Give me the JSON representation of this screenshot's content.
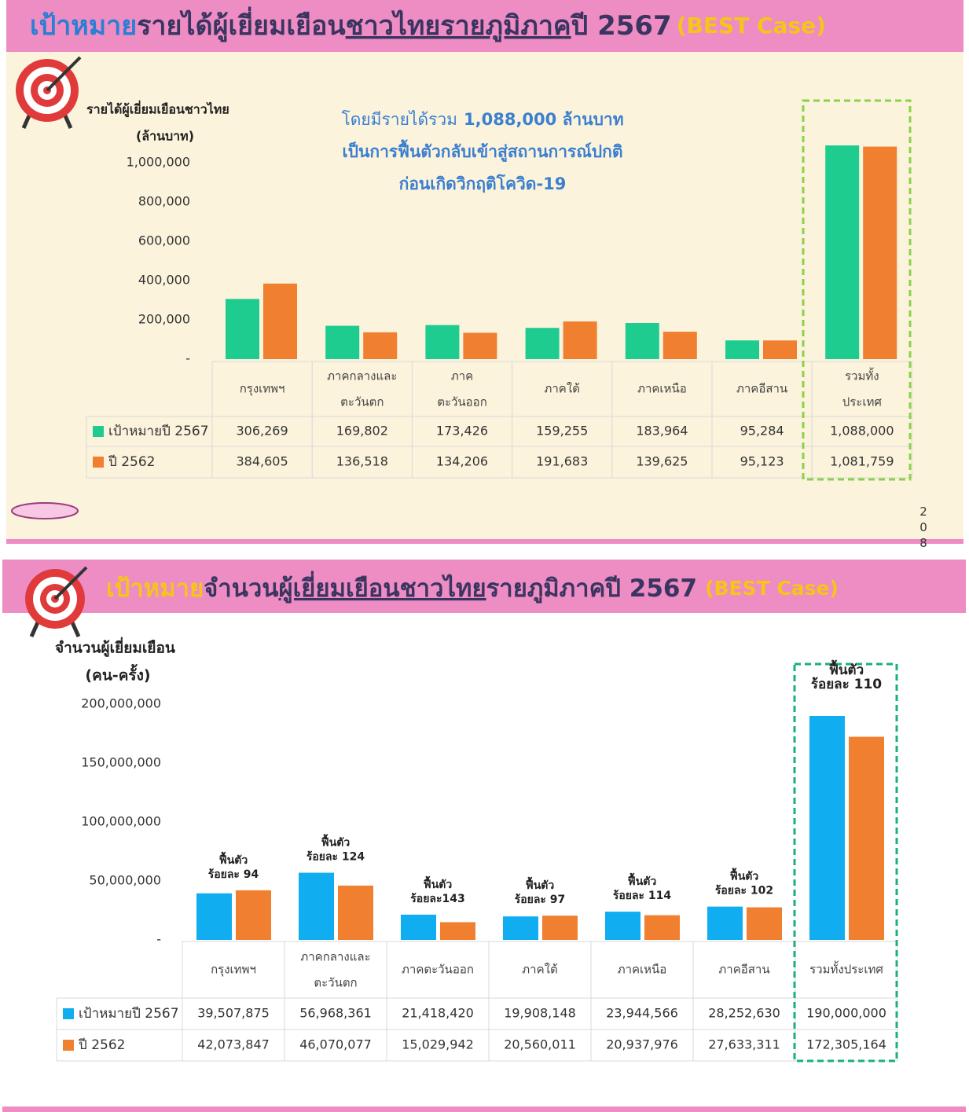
{
  "chart_data": [
    {
      "type": "bar",
      "title_parts": [
        "เป้าหมาย",
        "รายได้ผู้เยี่ยมเยือน",
        "ชาวไทยรายภูมิภาค",
        "ปี 2567"
      ],
      "subtitle": "(BEST Case)",
      "y_label": [
        "รายได้ผู้เยี่ยมเยือนชาวไทย",
        "(ล้านบาท)"
      ],
      "annotation": [
        [
          "โดยมีรายได้รวม",
          "1,088,000 ล้านบาท"
        ],
        [
          "เป็นการฟื้นตัวกลับเข้าสู่สถานการณ์ปกติ"
        ],
        [
          "ก่อนเกิดวิกฤติโควิด-19"
        ]
      ],
      "categories": [
        "กรุงเทพฯ",
        "ภาคกลางและ\nตะวันตก",
        "ภาค\nตะวันออก",
        "ภาคใต้",
        "ภาคเหนือ",
        "ภาคอีสาน",
        "รวมทั้ง\nประเทศ"
      ],
      "series": [
        {
          "name": "เป้าหมายปี 2567",
          "color": "#1fcc8f",
          "values": [
            306269,
            169802,
            173426,
            159255,
            183964,
            95284,
            1088000
          ],
          "value_labels": [
            "306,269",
            "169,802",
            "173,426",
            "159,255",
            "183,964",
            "95,284",
            "1,088,000"
          ]
        },
        {
          "name": "ปี 2562",
          "color": "#f07f2f",
          "values": [
            384605,
            136518,
            134206,
            191683,
            139625,
            95123,
            1081759
          ],
          "value_labels": [
            "384,605",
            "136,518",
            "134,206",
            "191,683",
            "139,625",
            "95,123",
            "1,081,759"
          ]
        }
      ],
      "ylim": [
        0,
        1100000
      ],
      "yticks": [
        {
          "value": 0,
          "label": "-"
        },
        {
          "value": 200000,
          "label": "200,000"
        },
        {
          "value": 400000,
          "label": "400,000"
        },
        {
          "value": 600000,
          "label": "600,000"
        },
        {
          "value": 800000,
          "label": "800,000"
        },
        {
          "value": 1000000,
          "label": "1,000,000"
        }
      ],
      "highlight_color": "#8cd14a",
      "page_number": "208"
    },
    {
      "type": "bar",
      "title_parts": [
        "เป้าหมาย",
        "จำนวน",
        "ผู้เยี่ยมเยือนชาวไทย",
        "รายภูมิภาคปี 2567"
      ],
      "subtitle": "(BEST Case)",
      "y_label": [
        "จำนวนผู้เยี่ยมเยือน",
        "(คน-ครั้ง)"
      ],
      "categories": [
        "กรุงเทพฯ",
        "ภาคกลางและ\nตะวันตก",
        "ภาคตะวันออก",
        "ภาคใต้",
        "ภาคเหนือ",
        "ภาคอีสาน",
        "รวมทั้งประเทศ"
      ],
      "recovery_labels": [
        [
          "ฟื้นตัว",
          "ร้อยละ 94"
        ],
        [
          "ฟื้นตัว",
          "ร้อยละ 124"
        ],
        [
          "ฟื้นตัว",
          "ร้อยละ143"
        ],
        [
          "ฟื้นตัว",
          "ร้อยละ 97"
        ],
        [
          "ฟื้นตัว",
          "ร้อยละ 114"
        ],
        [
          "ฟื้นตัว",
          "ร้อยละ 102"
        ],
        [
          "ฟื้นตัว",
          "ร้อยละ 110"
        ]
      ],
      "series": [
        {
          "name": "เป้าหมายปี 2567",
          "color": "#10aef0",
          "values": [
            39507875,
            56968361,
            21418420,
            19908148,
            23944566,
            28252630,
            190000000
          ],
          "value_labels": [
            "39,507,875",
            "56,968,361",
            "21,418,420",
            "19,908,148",
            "23,944,566",
            "28,252,630",
            "190,000,000"
          ]
        },
        {
          "name": "ปี 2562",
          "color": "#f07f30",
          "values": [
            42073847,
            46070077,
            15029942,
            20560011,
            20937976,
            27633311,
            172305164
          ],
          "value_labels": [
            "42,073,847",
            "46,070,077",
            "15,029,942",
            "20,560,011",
            "20,937,976",
            "27,633,311",
            "172,305,164"
          ]
        }
      ],
      "ylim": [
        0,
        200000000
      ],
      "yticks": [
        {
          "value": 0,
          "label": "-"
        },
        {
          "value": 50000000,
          "label": "50,000,000"
        },
        {
          "value": 100000000,
          "label": "100,000,000"
        },
        {
          "value": 150000000,
          "label": "150,000,000"
        },
        {
          "value": 200000000,
          "label": "200,000,000"
        }
      ],
      "highlight_color": "#1ab07a"
    }
  ]
}
